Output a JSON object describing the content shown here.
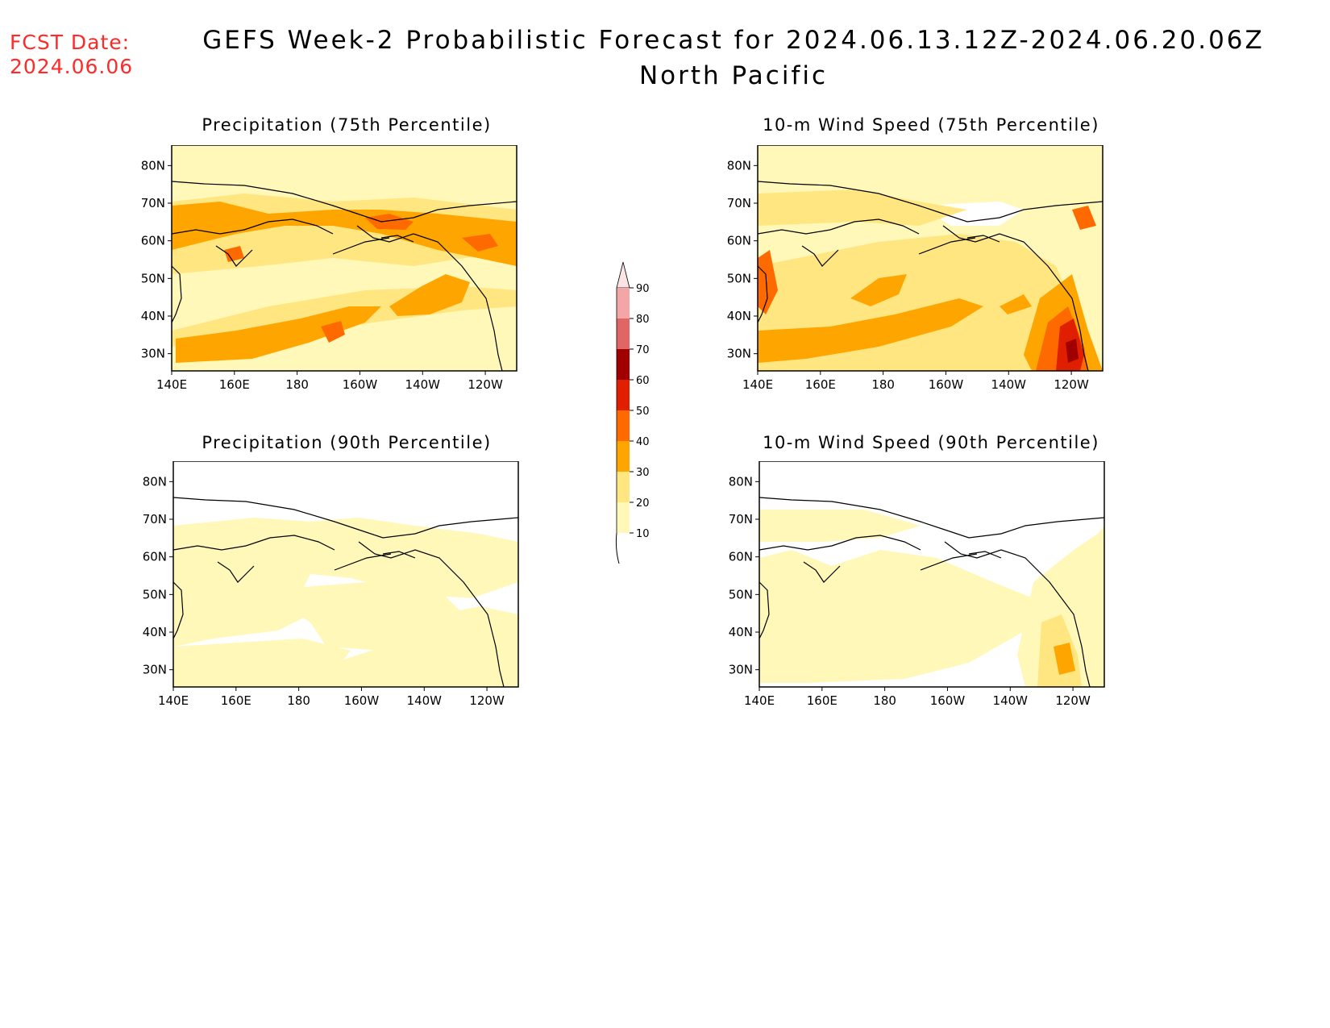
{
  "forecast_date": {
    "label": "FCST Date:",
    "value": "2024.06.06"
  },
  "title": {
    "line1": "GEFS Week-2 Probabilistic Forecast for 2024.06.13.12Z-2024.06.20.06Z",
    "line2": "North Pacific"
  },
  "panels": [
    {
      "title": "Precipitation (75th Percentile)",
      "map_level": "high"
    },
    {
      "title": "10-m Wind Speed (75th Percentile)",
      "map_level": "high"
    },
    {
      "title": "Precipitation (90th Percentile)",
      "map_level": "low"
    },
    {
      "title": "10-m Wind Speed (90th Percentile)",
      "map_level": "low"
    }
  ],
  "axes": {
    "lon_ticks": [
      "140E",
      "160E",
      "180",
      "160W",
      "140W",
      "120W"
    ],
    "lat_ticks": [
      "80N",
      "70N",
      "60N",
      "50N",
      "40N",
      "30N"
    ]
  },
  "colorbar": {
    "levels": [
      "10",
      "20",
      "30",
      "40",
      "50",
      "60",
      "70",
      "80",
      "90"
    ],
    "colors": [
      "#fff8b8",
      "#ffe680",
      "#ffa500",
      "#ff6a00",
      "#e01e00",
      "#a00000",
      "#e06666",
      "#f4a6a6",
      "#fde4e4"
    ]
  }
}
